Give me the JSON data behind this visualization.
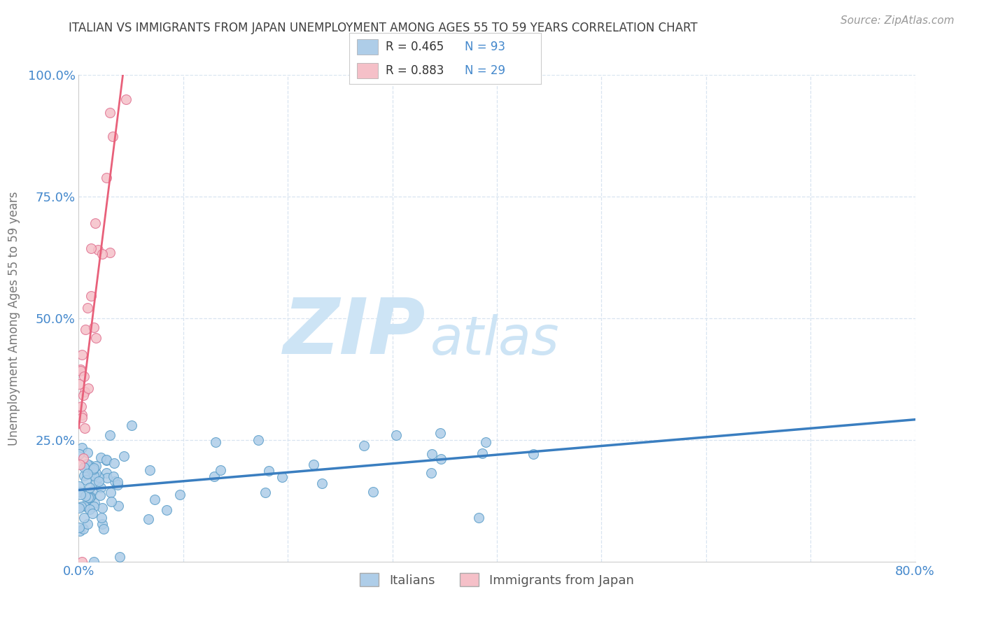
{
  "title": "ITALIAN VS IMMIGRANTS FROM JAPAN UNEMPLOYMENT AMONG AGES 55 TO 59 YEARS CORRELATION CHART",
  "source": "Source: ZipAtlas.com",
  "ylabel": "Unemployment Among Ages 55 to 59 years",
  "xlim": [
    0.0,
    0.8
  ],
  "ylim": [
    0.0,
    1.0
  ],
  "italians_color": "#aecde8",
  "italians_edge_color": "#5b9ec9",
  "japan_color": "#f5c0c8",
  "japan_edge_color": "#e07090",
  "trend_blue": "#3a7ec0",
  "trend_pink": "#e8607a",
  "trend_dashed_color": "#cccccc",
  "R_italians": 0.465,
  "N_italians": 93,
  "R_japan": 0.883,
  "N_japan": 29,
  "legend_box_blue": "#aecde8",
  "legend_box_pink": "#f5c0c8",
  "watermark_zip": "ZIP",
  "watermark_atlas": "atlas",
  "watermark_color": "#cde4f5",
  "background_color": "#ffffff",
  "grid_color": "#d8e4f0",
  "title_color": "#404040",
  "tick_label_color": "#4488cc",
  "source_color": "#999999"
}
